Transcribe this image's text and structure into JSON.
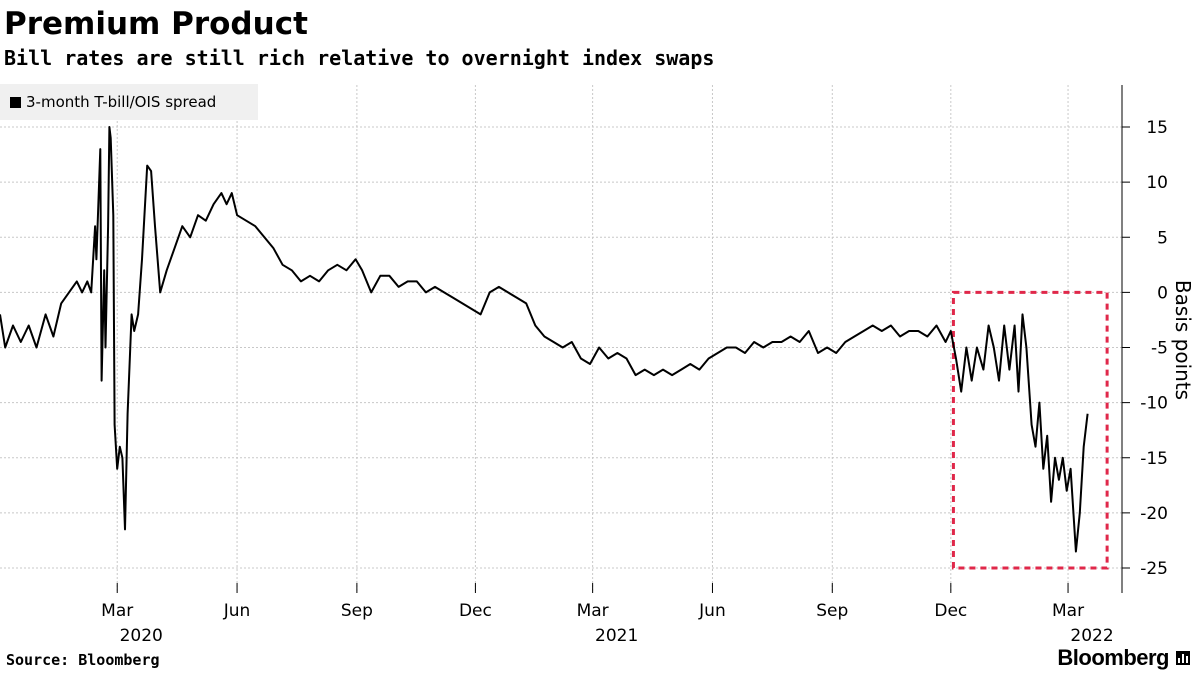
{
  "header": {
    "title": "Premium Product",
    "subtitle": "Bill rates are still rich relative to overnight index swaps"
  },
  "footer": {
    "source": "Source: Bloomberg",
    "brand": "Bloomberg"
  },
  "colors": {
    "line": "#000000",
    "grid": "#c8c8c8",
    "highlight_box": "#e0284a",
    "legend_bg": "#f0f0f0"
  },
  "chart_data": {
    "type": "line",
    "title": "Premium Product",
    "subtitle": "Bill rates are still rich relative to overnight index swaps",
    "ylabel": "Basis points",
    "xlabel": "",
    "y_ticks": [
      15,
      10,
      5,
      0,
      -5,
      -10,
      -15,
      -20,
      -25
    ],
    "ylim": [
      -27,
      19
    ],
    "xlim": [
      "2019-12-02",
      "2022-03-24"
    ],
    "x_tick_labels": [
      {
        "date": "2020-03-01",
        "label": "Mar",
        "year": "2020"
      },
      {
        "date": "2020-06-01",
        "label": "Jun",
        "year": ""
      },
      {
        "date": "2020-09-01",
        "label": "Sep",
        "year": ""
      },
      {
        "date": "2020-12-01",
        "label": "Dec",
        "year": ""
      },
      {
        "date": "2021-03-01",
        "label": "Mar",
        "year": "2021"
      },
      {
        "date": "2021-06-01",
        "label": "Jun",
        "year": ""
      },
      {
        "date": "2021-09-01",
        "label": "Sep",
        "year": ""
      },
      {
        "date": "2021-12-01",
        "label": "Dec",
        "year": ""
      },
      {
        "date": "2022-03-01",
        "label": "Mar",
        "year": "2022"
      }
    ],
    "legend": [
      {
        "name": "3-month T-bill/OIS spread",
        "position": "top-left"
      }
    ],
    "highlight": {
      "x_start": "2021-12-03",
      "x_end": "2022-03-31",
      "y_top": 0,
      "y_bottom": -25
    },
    "series": [
      {
        "name": "3-month T-bill/OIS spread",
        "points": [
          [
            "2019-12-02",
            -2
          ],
          [
            "2019-12-06",
            -5
          ],
          [
            "2019-12-12",
            -3
          ],
          [
            "2019-12-18",
            -4.5
          ],
          [
            "2019-12-24",
            -3
          ],
          [
            "2019-12-30",
            -5
          ],
          [
            "2020-01-06",
            -2
          ],
          [
            "2020-01-12",
            -4
          ],
          [
            "2020-01-18",
            -1
          ],
          [
            "2020-01-24",
            0
          ],
          [
            "2020-01-30",
            1
          ],
          [
            "2020-02-03",
            0
          ],
          [
            "2020-02-07",
            1
          ],
          [
            "2020-02-10",
            0
          ],
          [
            "2020-02-13",
            6
          ],
          [
            "2020-02-14",
            3
          ],
          [
            "2020-02-17",
            13
          ],
          [
            "2020-02-18",
            -8
          ],
          [
            "2020-02-20",
            2
          ],
          [
            "2020-02-21",
            -5
          ],
          [
            "2020-02-23",
            6
          ],
          [
            "2020-02-24",
            15
          ],
          [
            "2020-02-25",
            14
          ],
          [
            "2020-02-27",
            7
          ],
          [
            "2020-02-28",
            -12
          ],
          [
            "2020-03-01",
            -16
          ],
          [
            "2020-03-03",
            -14
          ],
          [
            "2020-03-05",
            -15
          ],
          [
            "2020-03-07",
            -21.5
          ],
          [
            "2020-03-09",
            -11
          ],
          [
            "2020-03-12",
            -2
          ],
          [
            "2020-03-14",
            -3.5
          ],
          [
            "2020-03-17",
            -2
          ],
          [
            "2020-03-20",
            3
          ],
          [
            "2020-03-24",
            11.5
          ],
          [
            "2020-03-27",
            11
          ],
          [
            "2020-03-30",
            6
          ],
          [
            "2020-04-03",
            0
          ],
          [
            "2020-04-08",
            2
          ],
          [
            "2020-04-14",
            4
          ],
          [
            "2020-04-20",
            6
          ],
          [
            "2020-04-26",
            5
          ],
          [
            "2020-05-02",
            7
          ],
          [
            "2020-05-08",
            6.5
          ],
          [
            "2020-05-14",
            8
          ],
          [
            "2020-05-20",
            9
          ],
          [
            "2020-05-24",
            8
          ],
          [
            "2020-05-28",
            9
          ],
          [
            "2020-06-01",
            7
          ],
          [
            "2020-06-08",
            6.5
          ],
          [
            "2020-06-15",
            6
          ],
          [
            "2020-06-22",
            5
          ],
          [
            "2020-06-29",
            4
          ],
          [
            "2020-07-06",
            2.5
          ],
          [
            "2020-07-13",
            2
          ],
          [
            "2020-07-20",
            1
          ],
          [
            "2020-07-27",
            1.5
          ],
          [
            "2020-08-03",
            1
          ],
          [
            "2020-08-10",
            2
          ],
          [
            "2020-08-17",
            2.5
          ],
          [
            "2020-08-24",
            2
          ],
          [
            "2020-08-31",
            3
          ],
          [
            "2020-09-05",
            2
          ],
          [
            "2020-09-12",
            0
          ],
          [
            "2020-09-19",
            1.5
          ],
          [
            "2020-09-26",
            1.5
          ],
          [
            "2020-10-03",
            0.5
          ],
          [
            "2020-10-10",
            1
          ],
          [
            "2020-10-17",
            1
          ],
          [
            "2020-10-24",
            0
          ],
          [
            "2020-10-31",
            0.5
          ],
          [
            "2020-11-07",
            0
          ],
          [
            "2020-11-14",
            -0.5
          ],
          [
            "2020-11-21",
            -1
          ],
          [
            "2020-11-28",
            -1.5
          ],
          [
            "2020-12-05",
            -2
          ],
          [
            "2020-12-12",
            0
          ],
          [
            "2020-12-19",
            0.5
          ],
          [
            "2020-12-26",
            0
          ],
          [
            "2021-01-02",
            -0.5
          ],
          [
            "2021-01-09",
            -1
          ],
          [
            "2021-01-16",
            -3
          ],
          [
            "2021-01-23",
            -4
          ],
          [
            "2021-01-30",
            -4.5
          ],
          [
            "2021-02-06",
            -5
          ],
          [
            "2021-02-13",
            -4.5
          ],
          [
            "2021-02-20",
            -6
          ],
          [
            "2021-02-27",
            -6.5
          ],
          [
            "2021-03-06",
            -5
          ],
          [
            "2021-03-13",
            -6
          ],
          [
            "2021-03-20",
            -5.5
          ],
          [
            "2021-03-27",
            -6
          ],
          [
            "2021-04-03",
            -7.5
          ],
          [
            "2021-04-10",
            -7
          ],
          [
            "2021-04-17",
            -7.5
          ],
          [
            "2021-04-24",
            -7
          ],
          [
            "2021-05-01",
            -7.5
          ],
          [
            "2021-05-08",
            -7
          ],
          [
            "2021-05-15",
            -6.5
          ],
          [
            "2021-05-22",
            -7
          ],
          [
            "2021-05-29",
            -6
          ],
          [
            "2021-06-05",
            -5.5
          ],
          [
            "2021-06-12",
            -5
          ],
          [
            "2021-06-19",
            -5
          ],
          [
            "2021-06-26",
            -5.5
          ],
          [
            "2021-07-03",
            -4.5
          ],
          [
            "2021-07-10",
            -5
          ],
          [
            "2021-07-17",
            -4.5
          ],
          [
            "2021-07-24",
            -4.5
          ],
          [
            "2021-07-31",
            -4
          ],
          [
            "2021-08-07",
            -4.5
          ],
          [
            "2021-08-14",
            -3.5
          ],
          [
            "2021-08-21",
            -5.5
          ],
          [
            "2021-08-28",
            -5
          ],
          [
            "2021-09-04",
            -5.5
          ],
          [
            "2021-09-11",
            -4.5
          ],
          [
            "2021-09-18",
            -4
          ],
          [
            "2021-09-25",
            -3.5
          ],
          [
            "2021-10-02",
            -3
          ],
          [
            "2021-10-09",
            -3.5
          ],
          [
            "2021-10-16",
            -3
          ],
          [
            "2021-10-23",
            -4
          ],
          [
            "2021-10-30",
            -3.5
          ],
          [
            "2021-11-06",
            -3.5
          ],
          [
            "2021-11-13",
            -4
          ],
          [
            "2021-11-20",
            -3
          ],
          [
            "2021-11-27",
            -4.5
          ],
          [
            "2021-12-01",
            -3.5
          ],
          [
            "2021-12-05",
            -6
          ],
          [
            "2021-12-09",
            -9
          ],
          [
            "2021-12-13",
            -5
          ],
          [
            "2021-12-17",
            -8
          ],
          [
            "2021-12-21",
            -5
          ],
          [
            "2021-12-26",
            -7
          ],
          [
            "2021-12-30",
            -3
          ],
          [
            "2022-01-03",
            -5
          ],
          [
            "2022-01-07",
            -8
          ],
          [
            "2022-01-11",
            -3
          ],
          [
            "2022-01-15",
            -7
          ],
          [
            "2022-01-19",
            -3
          ],
          [
            "2022-01-22",
            -9
          ],
          [
            "2022-01-25",
            -2
          ],
          [
            "2022-01-28",
            -5
          ],
          [
            "2022-02-01",
            -12
          ],
          [
            "2022-02-04",
            -14
          ],
          [
            "2022-02-07",
            -10
          ],
          [
            "2022-02-10",
            -16
          ],
          [
            "2022-02-13",
            -13
          ],
          [
            "2022-02-16",
            -19
          ],
          [
            "2022-02-19",
            -15
          ],
          [
            "2022-02-22",
            -17
          ],
          [
            "2022-02-25",
            -15
          ],
          [
            "2022-02-28",
            -18
          ],
          [
            "2022-03-03",
            -16
          ],
          [
            "2022-03-07",
            -23.5
          ],
          [
            "2022-03-10",
            -20
          ],
          [
            "2022-03-13",
            -14
          ],
          [
            "2022-03-16",
            -11
          ]
        ]
      }
    ]
  }
}
